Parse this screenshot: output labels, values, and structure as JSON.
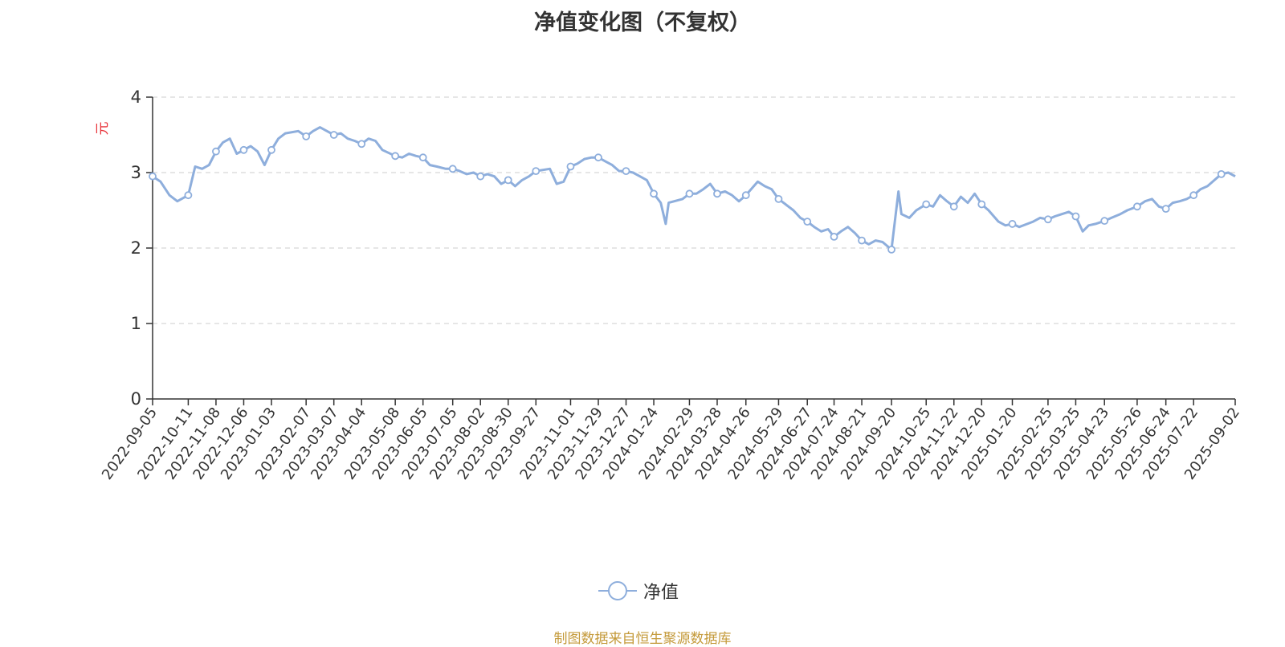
{
  "title": "净值变化图（不复权）",
  "legend": {
    "series_name": "净值"
  },
  "source_note": "制图数据来自恒生聚源数据库",
  "colors": {
    "line": "#8eaedc",
    "axis": "#333333",
    "grid": "#cccccc",
    "ylabel": "#e8333a",
    "source": "#c49a3a"
  },
  "chart_data": {
    "type": "line",
    "title": "净值变化图（不复权）",
    "ylabel": "元",
    "xlabel": "",
    "ylim": [
      0,
      4
    ],
    "yticks": [
      0,
      1,
      2,
      3,
      4
    ],
    "grid": true,
    "legend_position": "bottom-center",
    "xticks": [
      "2022-09-05",
      "2022-10-11",
      "2022-11-08",
      "2022-12-06",
      "2023-01-03",
      "2023-02-07",
      "2023-03-07",
      "2023-04-04",
      "2023-05-08",
      "2023-06-05",
      "2023-07-05",
      "2023-08-02",
      "2023-08-30",
      "2023-09-27",
      "2023-11-01",
      "2023-11-29",
      "2023-12-27",
      "2024-01-24",
      "2024-02-29",
      "2024-03-28",
      "2024-04-26",
      "2024-05-29",
      "2024-06-27",
      "2024-07-24",
      "2024-08-21",
      "2024-09-20",
      "2024-10-25",
      "2024-11-22",
      "2024-12-20",
      "2025-01-20",
      "2025-02-25",
      "2025-03-25",
      "2025-04-23",
      "2025-05-26",
      "2025-06-24",
      "2025-07-22",
      "2025-09-02"
    ],
    "series": [
      {
        "name": "净值",
        "x": [
          "2022-09-05",
          "2022-09-13",
          "2022-09-22",
          "2022-09-30",
          "2022-10-11",
          "2022-10-18",
          "2022-10-25",
          "2022-11-01",
          "2022-11-08",
          "2022-11-15",
          "2022-11-22",
          "2022-11-29",
          "2022-12-06",
          "2022-12-13",
          "2022-12-20",
          "2022-12-27",
          "2023-01-03",
          "2023-01-10",
          "2023-01-17",
          "2023-01-30",
          "2023-02-07",
          "2023-02-14",
          "2023-02-21",
          "2023-02-28",
          "2023-03-07",
          "2023-03-14",
          "2023-03-21",
          "2023-03-28",
          "2023-04-04",
          "2023-04-11",
          "2023-04-18",
          "2023-04-25",
          "2023-05-08",
          "2023-05-15",
          "2023-05-22",
          "2023-05-29",
          "2023-06-05",
          "2023-06-12",
          "2023-06-19",
          "2023-06-28",
          "2023-07-05",
          "2023-07-12",
          "2023-07-19",
          "2023-07-26",
          "2023-08-02",
          "2023-08-09",
          "2023-08-16",
          "2023-08-23",
          "2023-08-30",
          "2023-09-06",
          "2023-09-13",
          "2023-09-20",
          "2023-09-27",
          "2023-10-11",
          "2023-10-18",
          "2023-10-25",
          "2023-11-01",
          "2023-11-08",
          "2023-11-15",
          "2023-11-22",
          "2023-11-29",
          "2023-12-06",
          "2023-12-13",
          "2023-12-20",
          "2023-12-27",
          "2024-01-03",
          "2024-01-10",
          "2024-01-17",
          "2024-01-24",
          "2024-01-31",
          "2024-02-05",
          "2024-02-08",
          "2024-02-22",
          "2024-02-29",
          "2024-03-07",
          "2024-03-14",
          "2024-03-21",
          "2024-03-28",
          "2024-04-05",
          "2024-04-12",
          "2024-04-19",
          "2024-04-26",
          "2024-05-08",
          "2024-05-15",
          "2024-05-22",
          "2024-05-29",
          "2024-06-05",
          "2024-06-13",
          "2024-06-20",
          "2024-06-27",
          "2024-07-04",
          "2024-07-11",
          "2024-07-18",
          "2024-07-24",
          "2024-07-31",
          "2024-08-07",
          "2024-08-14",
          "2024-08-21",
          "2024-08-28",
          "2024-09-04",
          "2024-09-11",
          "2024-09-20",
          "2024-09-27",
          "2024-09-30",
          "2024-10-08",
          "2024-10-15",
          "2024-10-25",
          "2024-11-01",
          "2024-11-08",
          "2024-11-15",
          "2024-11-22",
          "2024-11-29",
          "2024-12-06",
          "2024-12-13",
          "2024-12-20",
          "2024-12-27",
          "2025-01-06",
          "2025-01-13",
          "2025-01-20",
          "2025-01-27",
          "2025-02-10",
          "2025-02-17",
          "2025-02-25",
          "2025-03-04",
          "2025-03-11",
          "2025-03-18",
          "2025-03-25",
          "2025-04-01",
          "2025-04-07",
          "2025-04-14",
          "2025-04-23",
          "2025-04-30",
          "2025-05-09",
          "2025-05-16",
          "2025-05-26",
          "2025-06-03",
          "2025-06-10",
          "2025-06-17",
          "2025-06-24",
          "2025-07-01",
          "2025-07-08",
          "2025-07-15",
          "2025-07-22",
          "2025-07-29",
          "2025-08-05",
          "2025-08-12",
          "2025-08-19",
          "2025-08-26",
          "2025-09-02"
        ],
        "y": [
          2.95,
          2.88,
          2.7,
          2.62,
          2.7,
          3.08,
          3.05,
          3.1,
          3.28,
          3.4,
          3.45,
          3.25,
          3.3,
          3.35,
          3.28,
          3.1,
          3.3,
          3.45,
          3.52,
          3.55,
          3.48,
          3.55,
          3.6,
          3.55,
          3.5,
          3.52,
          3.45,
          3.42,
          3.38,
          3.45,
          3.42,
          3.3,
          3.22,
          3.2,
          3.25,
          3.22,
          3.2,
          3.1,
          3.08,
          3.05,
          3.05,
          3.02,
          2.98,
          3.0,
          2.95,
          2.98,
          2.95,
          2.85,
          2.9,
          2.82,
          2.9,
          2.95,
          3.02,
          3.05,
          2.85,
          2.88,
          3.08,
          3.12,
          3.18,
          3.2,
          3.2,
          3.15,
          3.1,
          3.02,
          3.02,
          3.0,
          2.95,
          2.9,
          2.72,
          2.6,
          2.32,
          2.6,
          2.65,
          2.72,
          2.72,
          2.78,
          2.85,
          2.72,
          2.75,
          2.7,
          2.62,
          2.7,
          2.88,
          2.82,
          2.78,
          2.65,
          2.58,
          2.5,
          2.4,
          2.35,
          2.28,
          2.22,
          2.25,
          2.15,
          2.22,
          2.28,
          2.2,
          2.1,
          2.05,
          2.1,
          2.08,
          1.98,
          2.75,
          2.45,
          2.4,
          2.5,
          2.58,
          2.55,
          2.7,
          2.62,
          2.55,
          2.68,
          2.6,
          2.72,
          2.58,
          2.5,
          2.35,
          2.3,
          2.32,
          2.28,
          2.35,
          2.4,
          2.38,
          2.42,
          2.45,
          2.48,
          2.42,
          2.22,
          2.3,
          2.32,
          2.36,
          2.4,
          2.45,
          2.5,
          2.55,
          2.62,
          2.65,
          2.55,
          2.52,
          2.6,
          2.62,
          2.65,
          2.7,
          2.78,
          2.82,
          2.9,
          2.98,
          3.0,
          2.95
        ]
      }
    ],
    "marker_indices": [
      0,
      4,
      8,
      12,
      16,
      20,
      24,
      28,
      32,
      36,
      40,
      44,
      48,
      52,
      56,
      60,
      64,
      68,
      73,
      77,
      81,
      85,
      89,
      93,
      97,
      101,
      106,
      110,
      114,
      118,
      122,
      126,
      130,
      134,
      138,
      142,
      146
    ]
  }
}
